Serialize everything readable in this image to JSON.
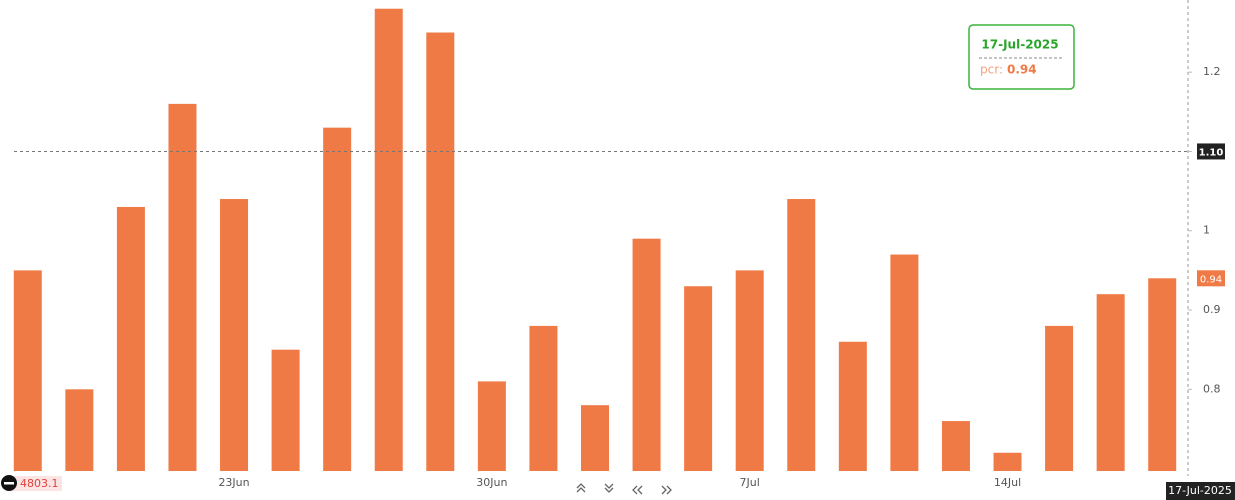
{
  "chart_data": {
    "type": "bar",
    "categories": [
      null,
      null,
      null,
      null,
      "23Jun",
      null,
      null,
      null,
      null,
      "30Jun",
      null,
      null,
      null,
      null,
      "7Jul",
      null,
      null,
      null,
      null,
      "14Jul",
      null,
      null,
      null
    ],
    "values": [
      0.95,
      0.8,
      1.03,
      1.16,
      1.04,
      0.85,
      1.13,
      1.28,
      1.25,
      0.81,
      0.88,
      0.78,
      0.99,
      0.93,
      0.95,
      1.04,
      0.86,
      0.97,
      0.76,
      0.72,
      0.88,
      0.92,
      0.94
    ],
    "color": "#ef7a45",
    "ylim": [
      0.697,
      1.291
    ],
    "yticks": [
      0.8,
      0.9,
      1,
      1.1,
      1.2
    ],
    "crosshair": {
      "value": 1.1,
      "label": "1.10"
    },
    "last_value": 0.94,
    "crosshair_date": "17-Jul-2025",
    "bottom_value": 4803.1,
    "tooltip": {
      "date": "17-Jul-2025",
      "label": "pcr:",
      "value": 0.94
    }
  }
}
